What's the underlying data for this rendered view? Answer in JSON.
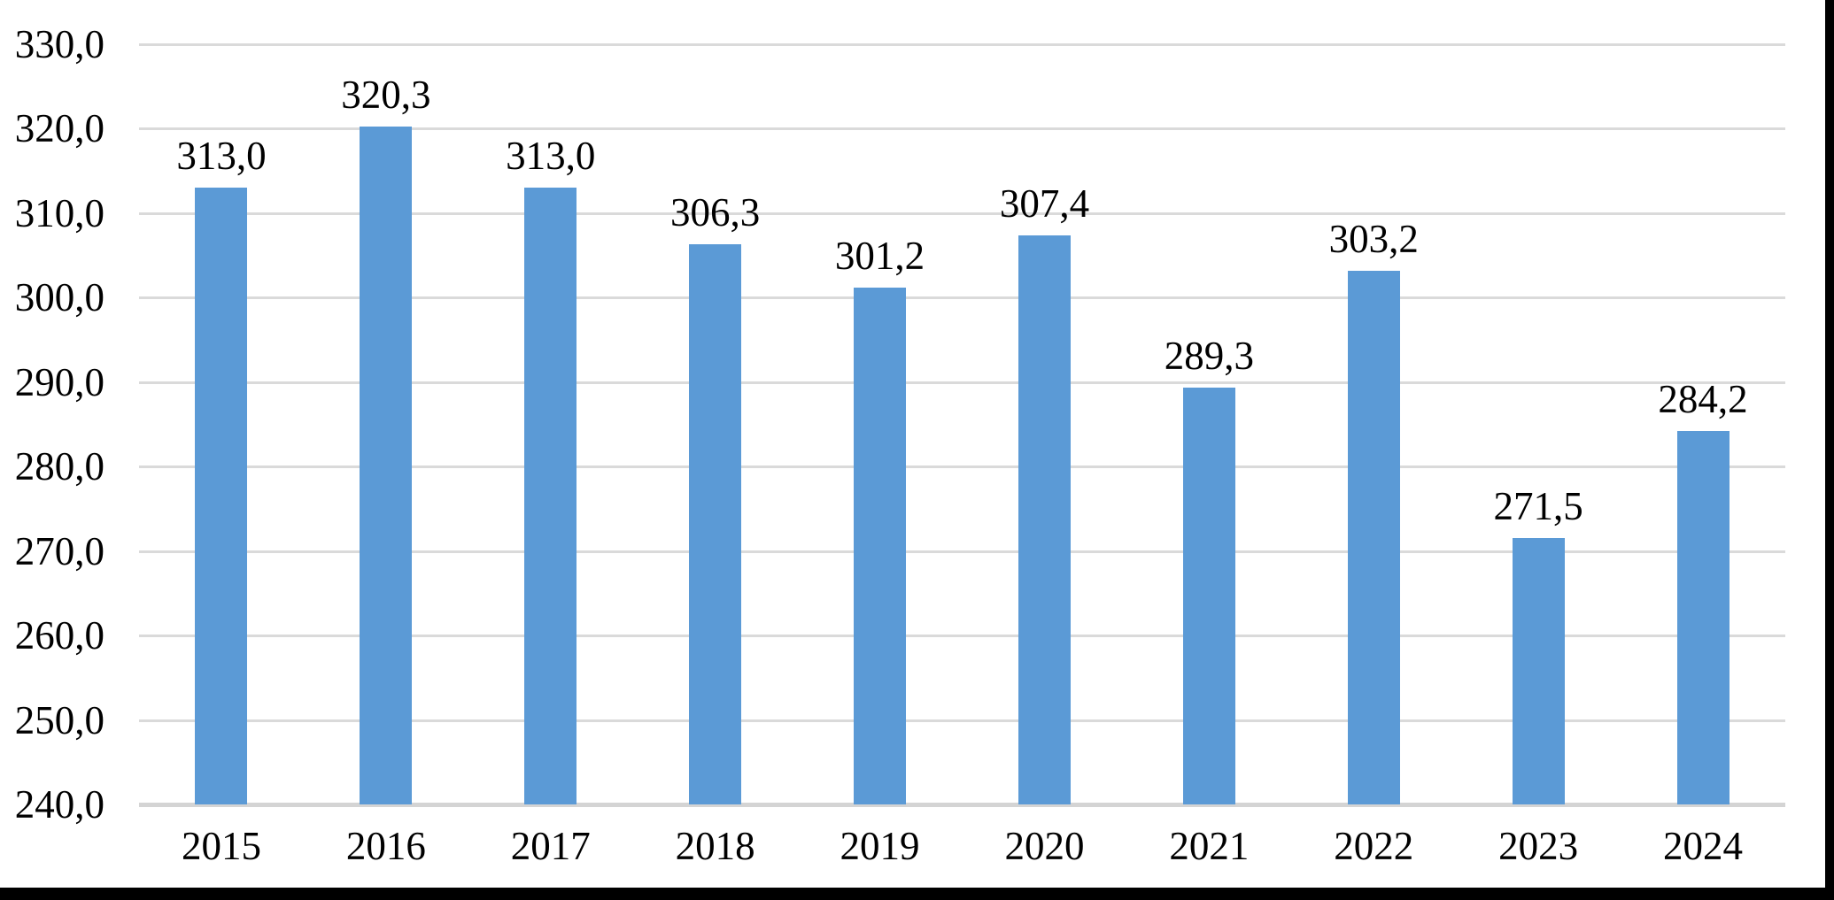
{
  "chart_data": {
    "type": "bar",
    "title": "",
    "xlabel": "",
    "ylabel": "",
    "categories": [
      "2015",
      "2016",
      "2017",
      "2018",
      "2019",
      "2020",
      "2021",
      "2022",
      "2023",
      "2024"
    ],
    "values": [
      313.0,
      320.3,
      313.0,
      306.3,
      301.2,
      307.4,
      289.3,
      303.2,
      271.5,
      284.2
    ],
    "data_labels": [
      "313,0",
      "320,3",
      "313,0",
      "306,3",
      "301,2",
      "307,4",
      "289,3",
      "303,2",
      "271,5",
      "284,2"
    ],
    "yticks": [
      330,
      320,
      310,
      300,
      290,
      280,
      270,
      260,
      250,
      240
    ],
    "ytick_labels": [
      "330,0",
      "320,0",
      "310,0",
      "300,0",
      "290,0",
      "280,0",
      "270,0",
      "260,0",
      "250,0",
      "240,0"
    ],
    "ylim": [
      240,
      330
    ],
    "decimal_separator": ",",
    "grid": "horizontal-only",
    "legend": "none",
    "single_series": true
  },
  "colors": {
    "bar": "#5b9ad6",
    "gridline": "#dadada",
    "axis_line": "#d4d4d4",
    "label_text": "#000000",
    "background": "#ffffff",
    "scan_border": "#000000"
  }
}
